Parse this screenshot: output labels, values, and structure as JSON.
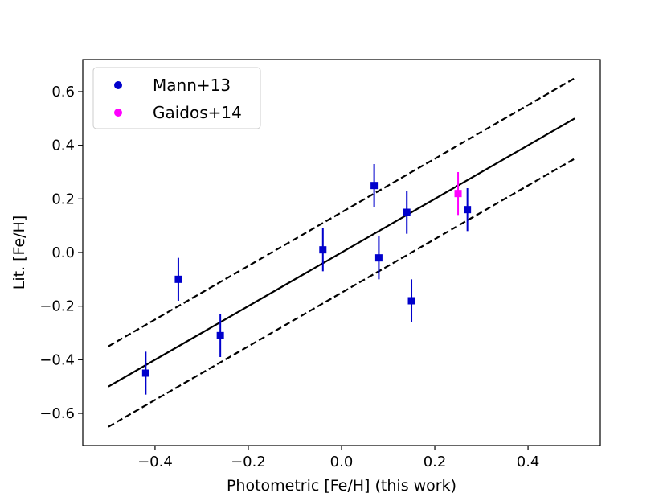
{
  "chart_data": {
    "type": "scatter",
    "title": "",
    "xlabel": "Photometric [Fe/H] (this work)",
    "ylabel": "Lit. [Fe/H]",
    "xlim": [
      -0.555,
      0.555
    ],
    "ylim": [
      -0.72,
      0.72
    ],
    "x_ticks": [
      -0.4,
      -0.2,
      0.0,
      0.2,
      0.4
    ],
    "x_tick_labels": [
      "−0.4",
      "−0.2",
      "0.0",
      "0.2",
      "0.4"
    ],
    "y_ticks": [
      -0.6,
      -0.4,
      -0.2,
      0.0,
      0.2,
      0.4,
      0.6
    ],
    "y_tick_labels": [
      "−0.6",
      "−0.4",
      "−0.2",
      "0.0",
      "0.2",
      "0.4",
      "0.6"
    ],
    "legend_position": "top-left",
    "series": [
      {
        "name": "Mann+13",
        "color": "#0000cc",
        "marker": "square",
        "points": [
          {
            "x": -0.42,
            "y": -0.45,
            "yerr": 0.08
          },
          {
            "x": -0.35,
            "y": -0.1,
            "yerr": 0.08
          },
          {
            "x": -0.26,
            "y": -0.31,
            "yerr": 0.08
          },
          {
            "x": -0.04,
            "y": 0.01,
            "yerr": 0.08
          },
          {
            "x": 0.07,
            "y": 0.25,
            "yerr": 0.08
          },
          {
            "x": 0.08,
            "y": -0.02,
            "yerr": 0.08
          },
          {
            "x": 0.14,
            "y": 0.15,
            "yerr": 0.08
          },
          {
            "x": 0.15,
            "y": -0.18,
            "yerr": 0.08
          },
          {
            "x": 0.27,
            "y": 0.16,
            "yerr": 0.08
          }
        ]
      },
      {
        "name": "Gaidos+14",
        "color": "#ff00ff",
        "marker": "square",
        "points": [
          {
            "x": 0.25,
            "y": 0.22,
            "yerr": 0.08
          }
        ]
      }
    ],
    "lines": [
      {
        "name": "one-to-one",
        "style": "solid",
        "color": "#000000",
        "x": [
          -0.5,
          0.5
        ],
        "y": [
          -0.5,
          0.5
        ]
      },
      {
        "name": "upper-offset",
        "style": "dashed",
        "color": "#000000",
        "x": [
          -0.5,
          0.5
        ],
        "y": [
          -0.35,
          0.65
        ]
      },
      {
        "name": "lower-offset",
        "style": "dashed",
        "color": "#000000",
        "x": [
          -0.5,
          0.5
        ],
        "y": [
          -0.65,
          0.35
        ]
      }
    ]
  }
}
